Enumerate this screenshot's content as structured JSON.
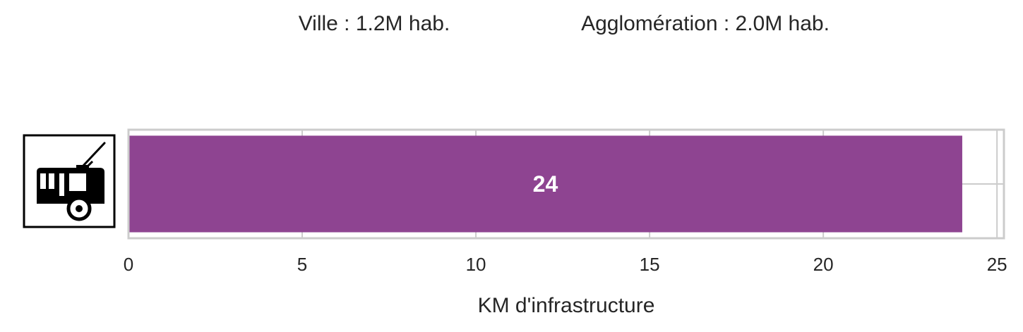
{
  "header": {
    "city_population": "Ville : 1.2M hab.",
    "metro_population": "Agglomération : 2.0M hab."
  },
  "icon": {
    "name": "trolleybus-icon"
  },
  "chart_data": {
    "type": "bar",
    "orientation": "horizontal",
    "categories": [
      ""
    ],
    "values": [
      24
    ],
    "data_labels": [
      "24"
    ],
    "xlabel": "KM d'infrastructure",
    "ylabel": "",
    "xlim": [
      0,
      25.2
    ],
    "x_ticks": [
      0,
      5,
      10,
      15,
      20,
      25
    ],
    "x_tick_labels": [
      "0",
      "5",
      "10",
      "15",
      "20",
      "25"
    ],
    "grid": true,
    "bar_color": "#8e4491"
  }
}
